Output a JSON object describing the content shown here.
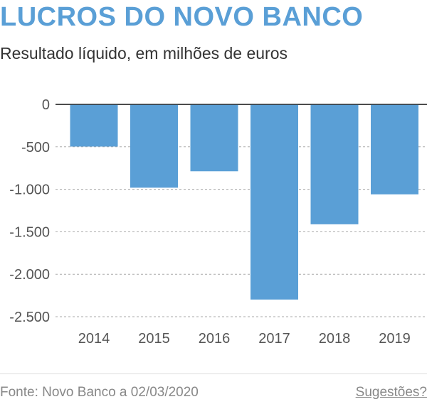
{
  "header": {
    "title": "LUCROS DO NOVO BANCO",
    "subtitle": "Resultado líquido, em milhões de euros"
  },
  "footer": {
    "source": "Fonte: Novo Banco a 02/03/2020",
    "suggestions": "Sugestões?"
  },
  "colors": {
    "title": "#5a9fd6",
    "bar": "#5a9fd6"
  },
  "chart_data": {
    "type": "bar",
    "title": "LUCROS DO NOVO BANCO",
    "subtitle": "Resultado líquido, em milhões de euros",
    "categories": [
      "2014",
      "2015",
      "2016",
      "2017",
      "2018",
      "2019"
    ],
    "values": [
      -497,
      -981,
      -788,
      -2298,
      -1412,
      -1059
    ],
    "ylim": [
      -2500,
      0
    ],
    "yticks": [
      0,
      -500,
      -1000,
      -1500,
      -2000,
      -2500
    ],
    "ytick_labels": [
      "0",
      "-500",
      "-1.000",
      "-1.500",
      "-2.000",
      "-2.500"
    ],
    "xlabel": "",
    "ylabel": "",
    "grid": true,
    "legend": "none"
  }
}
